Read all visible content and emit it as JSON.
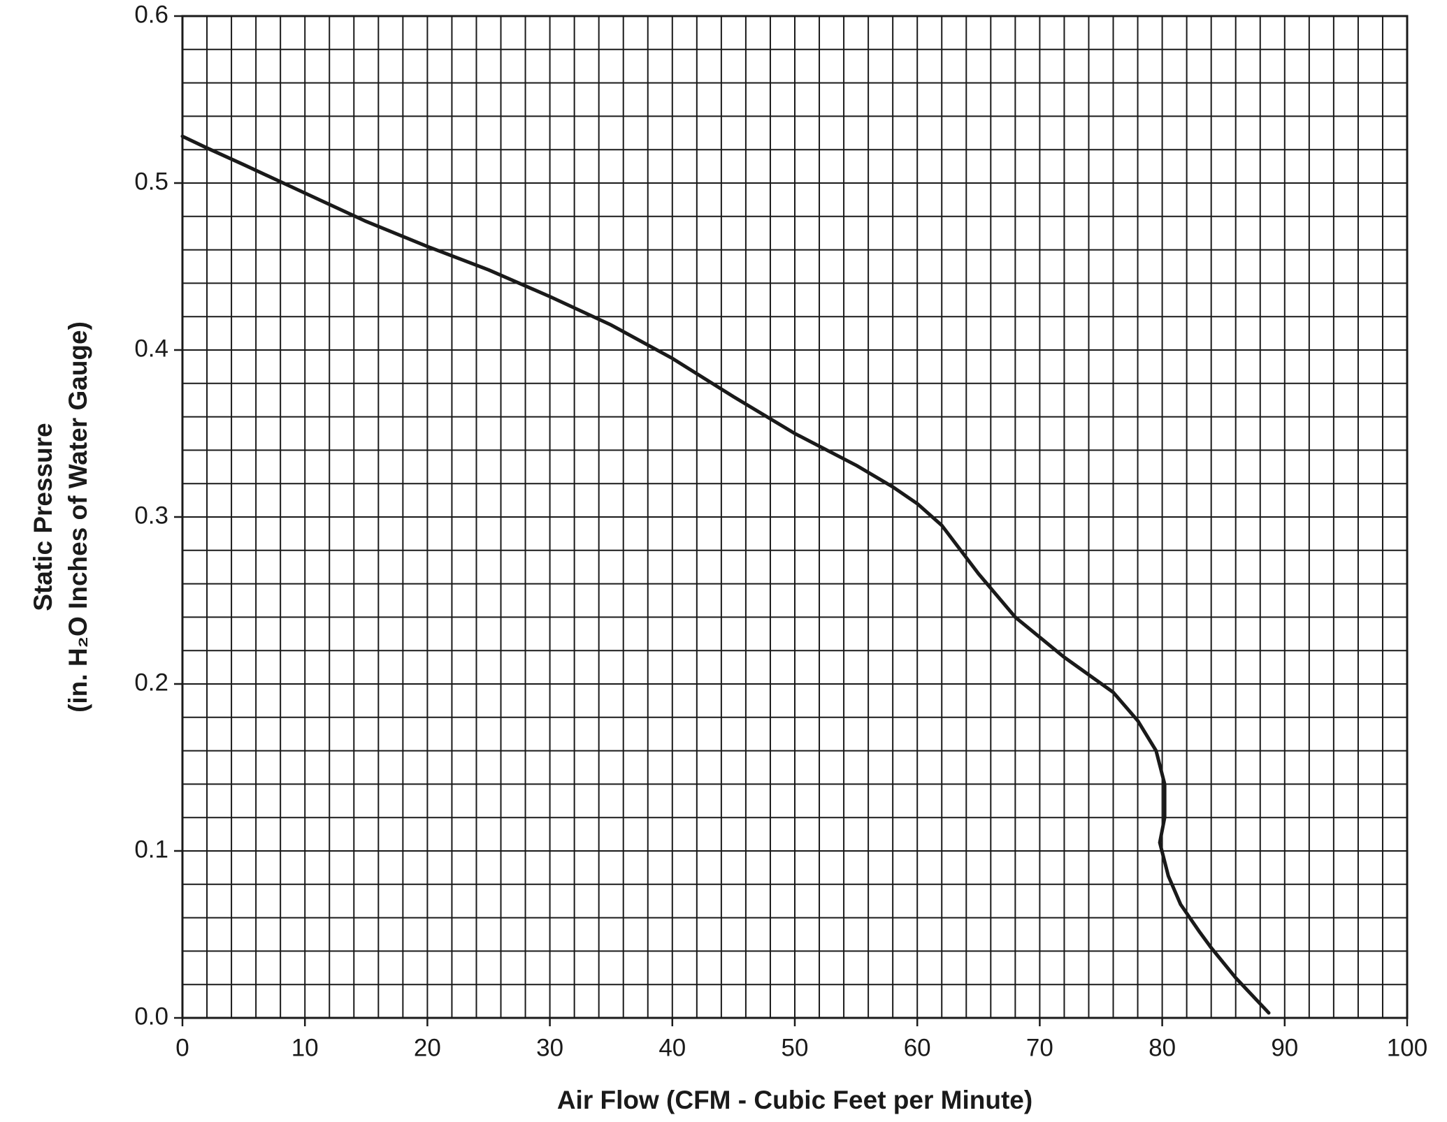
{
  "chart_data": {
    "type": "line",
    "xlabel": "Air Flow (CFM - Cubic Feet per Minute)",
    "ylabel": [
      "Static Pressure",
      "(in. H₂O Inches of Water Gauge)"
    ],
    "xlim": [
      0,
      100
    ],
    "ylim": [
      0,
      0.6
    ],
    "xticks": [
      0,
      10,
      20,
      30,
      40,
      50,
      60,
      70,
      80,
      90,
      100
    ],
    "yticks": [
      {
        "value": 0,
        "label": "0.0"
      },
      0.1,
      0.2,
      0.3,
      0.4,
      0.5,
      0.6
    ],
    "grid": true,
    "xgrid_minor": [
      0,
      2,
      4,
      6,
      8,
      10,
      12,
      14,
      16,
      18,
      20,
      22,
      24,
      26,
      28,
      30,
      32,
      34,
      36,
      38,
      40,
      42,
      44,
      46,
      48,
      50,
      52,
      54,
      56,
      58,
      60,
      62,
      64,
      66,
      68,
      70,
      72,
      74,
      76,
      78,
      80,
      82,
      84,
      86,
      88,
      90,
      92,
      94,
      96,
      98,
      100
    ],
    "ygrid_minor": [
      0,
      0.02,
      0.04,
      0.06,
      0.08,
      0.1,
      0.12,
      0.14,
      0.16,
      0.18,
      0.2,
      0.22,
      0.24,
      0.26,
      0.28,
      0.3,
      0.32,
      0.34,
      0.36,
      0.38,
      0.4,
      0.42,
      0.44,
      0.46,
      0.48,
      0.5,
      0.52,
      0.54,
      0.56,
      0.58,
      0.6
    ],
    "series": [
      {
        "color": "#1a1a1a",
        "x": [
          0,
          2,
          5,
          10,
          15,
          20,
          25,
          30,
          35,
          40,
          45,
          50,
          55,
          58,
          60,
          62,
          65,
          68,
          72,
          76,
          78,
          79.5,
          80.2,
          80.2,
          79.8,
          80.5,
          81.5,
          83,
          84,
          86,
          88.7
        ],
        "values": [
          0.528,
          0.521,
          0.511,
          0.494,
          0.477,
          0.462,
          0.448,
          0.432,
          0.415,
          0.395,
          0.372,
          0.35,
          0.331,
          0.318,
          0.308,
          0.295,
          0.266,
          0.24,
          0.216,
          0.195,
          0.178,
          0.16,
          0.14,
          0.12,
          0.105,
          0.085,
          0.068,
          0.052,
          0.042,
          0.024,
          0.003
        ]
      }
    ]
  }
}
